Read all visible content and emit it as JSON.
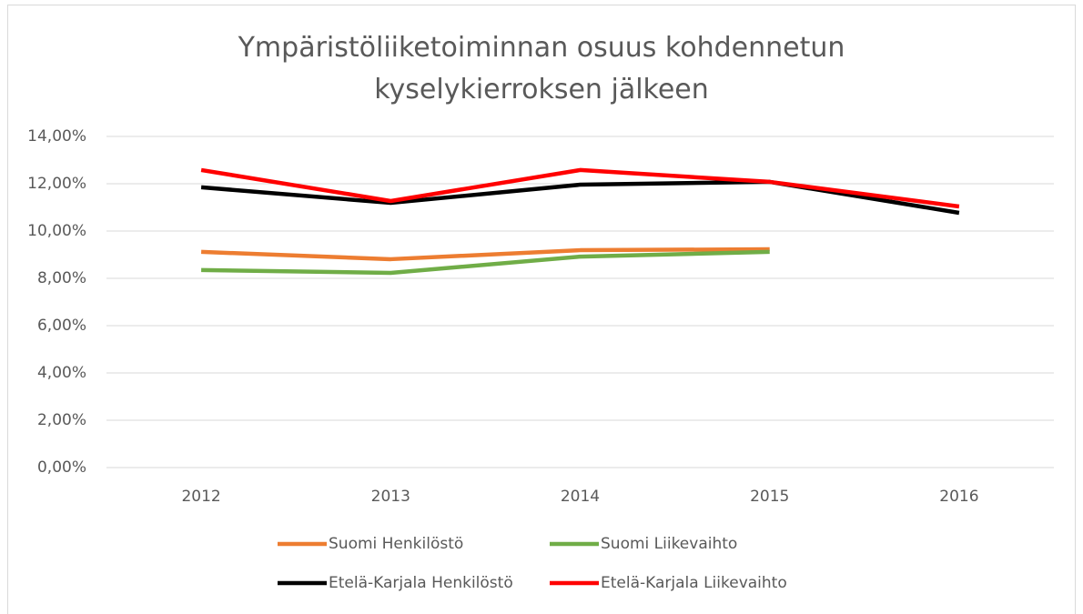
{
  "chart_data": {
    "type": "line",
    "title": "Ympäristöliiketoiminnan osuus kohdennetun kyselykierroksen jälkeen",
    "categories": [
      "2012",
      "2013",
      "2014",
      "2015",
      "2016"
    ],
    "series": [
      {
        "name": "Suomi Henkilöstö",
        "color": "#ed7d31",
        "values": [
          9.12,
          8.81,
          9.19,
          9.23,
          null
        ]
      },
      {
        "name": "Suomi Liikevaihto",
        "color": "#70ad47",
        "values": [
          8.35,
          8.23,
          8.92,
          9.12,
          null
        ]
      },
      {
        "name": "Etelä-Karjala Henkilöstö",
        "color": "#000000",
        "values": [
          11.85,
          11.19,
          11.96,
          12.08,
          10.77
        ]
      },
      {
        "name": "Etelä-Karjala Liikevaihto",
        "color": "#ff0000",
        "values": [
          12.58,
          11.27,
          12.58,
          12.08,
          11.04
        ]
      }
    ],
    "ylim": [
      0,
      14
    ],
    "yticks": [
      {
        "value": 0,
        "label": "0,00%"
      },
      {
        "value": 2,
        "label": "2,00%"
      },
      {
        "value": 4,
        "label": "4,00%"
      },
      {
        "value": 6,
        "label": "6,00%"
      },
      {
        "value": 8,
        "label": "8,00%"
      },
      {
        "value": 10,
        "label": "10,00%"
      },
      {
        "value": 12,
        "label": "12,00%"
      },
      {
        "value": 14,
        "label": "14,00%"
      }
    ],
    "grid": true,
    "legend": "bottom"
  }
}
